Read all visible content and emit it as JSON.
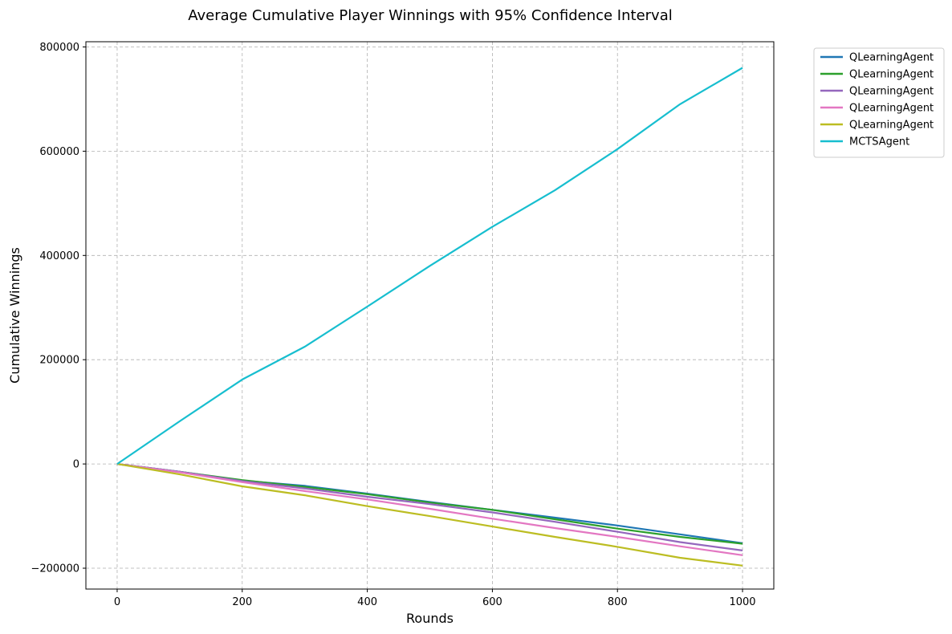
{
  "chart_data": {
    "type": "line",
    "title": "Average Cumulative Player Winnings with 95% Confidence Interval",
    "xlabel": "Rounds",
    "ylabel": "Cumulative Winnings",
    "xlim": [
      -50,
      1050
    ],
    "ylim": [
      -240000,
      810000
    ],
    "x_ticks": [
      0,
      200,
      400,
      600,
      800,
      1000
    ],
    "x_tick_labels": [
      "0",
      "200",
      "400",
      "600",
      "800",
      "1000"
    ],
    "y_ticks": [
      -200000,
      0,
      200000,
      400000,
      600000,
      800000
    ],
    "y_tick_labels": [
      "−200000",
      "0",
      "200000",
      "400000",
      "600000",
      "800000"
    ],
    "grid": true,
    "legend_position": "outside-top-right",
    "x": [
      0,
      100,
      200,
      300,
      400,
      500,
      600,
      700,
      800,
      900,
      1000
    ],
    "series": [
      {
        "name": "QLearningAgent",
        "color": "#1f77b4",
        "values": [
          0,
          -15000,
          -32000,
          -42000,
          -57000,
          -73000,
          -88000,
          -103000,
          -118000,
          -135000,
          -152000
        ]
      },
      {
        "name": "QLearningAgent",
        "color": "#2ca02c",
        "values": [
          0,
          -15000,
          -31000,
          -44000,
          -58000,
          -74000,
          -88000,
          -106000,
          -124000,
          -140000,
          -153000
        ]
      },
      {
        "name": "QLearningAgent",
        "color": "#9467bd",
        "values": [
          0,
          -15000,
          -33000,
          -47000,
          -63000,
          -77000,
          -93000,
          -111000,
          -130000,
          -150000,
          -166000
        ]
      },
      {
        "name": "QLearningAgent",
        "color": "#e377c2",
        "values": [
          0,
          -16000,
          -35000,
          -52000,
          -68000,
          -86000,
          -105000,
          -123000,
          -140000,
          -158000,
          -175000
        ]
      },
      {
        "name": "QLearningAgent",
        "color": "#bcbd22",
        "values": [
          0,
          -20000,
          -43000,
          -60000,
          -81000,
          -100000,
          -120000,
          -140000,
          -159000,
          -180000,
          -195000
        ]
      },
      {
        "name": "MCTSAgent",
        "color": "#17becf",
        "values": [
          0,
          82000,
          162000,
          225000,
          302000,
          380000,
          455000,
          525000,
          604000,
          690000,
          760000
        ]
      }
    ]
  }
}
